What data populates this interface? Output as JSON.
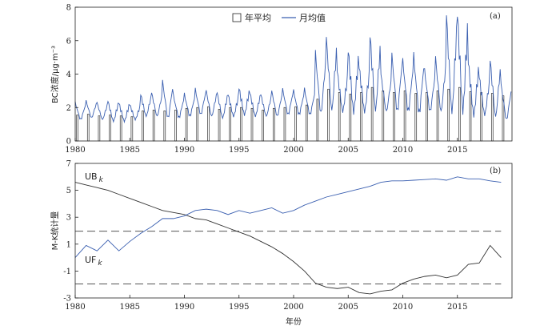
{
  "chart_data": [
    {
      "panel": "(a)",
      "type": "bar",
      "ylabel": "BC浓度/μg·m⁻³",
      "ylim": [
        0,
        8
      ],
      "yticks": [
        0,
        2,
        4,
        6,
        8
      ],
      "xlim": [
        1980,
        2020
      ],
      "xticks": [
        1980,
        1985,
        1990,
        1995,
        2000,
        2005,
        2010,
        2015
      ],
      "series": [
        {
          "name": "年平均",
          "type": "bar",
          "x": [
            1980,
            1981,
            1982,
            1983,
            1984,
            1985,
            1986,
            1987,
            1988,
            1989,
            1990,
            1991,
            1992,
            1993,
            1994,
            1995,
            1996,
            1997,
            1998,
            1999,
            2000,
            2001,
            2002,
            2003,
            2004,
            2005,
            2006,
            2007,
            2008,
            2009,
            2010,
            2011,
            2012,
            2013,
            2014,
            2015,
            2016,
            2017,
            2018,
            2019
          ],
          "values": [
            1.55,
            1.6,
            1.5,
            1.55,
            1.5,
            1.45,
            1.8,
            1.85,
            1.8,
            1.85,
            1.95,
            2.0,
            2.05,
            1.9,
            2.0,
            2.0,
            1.95,
            1.85,
            1.95,
            2.0,
            2.05,
            2.15,
            2.5,
            3.1,
            2.9,
            2.8,
            2.9,
            3.2,
            3.0,
            2.9,
            3.0,
            2.85,
            2.9,
            3.0,
            3.1,
            3.2,
            2.95,
            2.9,
            2.85,
            2.7
          ]
        },
        {
          "name": "月均值",
          "type": "line",
          "color": "#3a5fb0",
          "peaks": [
            2.3,
            2.4,
            2.3,
            2.4,
            2.3,
            2.2,
            2.8,
            2.9,
            3.6,
            2.7,
            2.8,
            3.1,
            3.0,
            2.9,
            2.8,
            3.2,
            2.9,
            2.8,
            3.0,
            3.1,
            3.0,
            3.1,
            5.3,
            6.2,
            4.2,
            5.5,
            4.5,
            6.4,
            4.0,
            5.2,
            4.8,
            5.1,
            4.2,
            5.0,
            7.6,
            7.7,
            4.8,
            3.9,
            4.9,
            3.4
          ],
          "troughs": [
            1.3,
            1.4,
            1.3,
            1.2,
            1.2,
            1.3,
            1.5,
            1.5,
            1.4,
            1.4,
            1.5,
            1.6,
            1.5,
            1.4,
            1.5,
            1.6,
            1.5,
            1.5,
            1.5,
            1.6,
            1.6,
            1.6,
            1.7,
            1.9,
            1.8,
            1.8,
            1.8,
            1.9,
            1.8,
            1.8,
            1.8,
            1.7,
            1.8,
            1.8,
            1.8,
            1.9,
            1.6,
            1.6,
            1.5,
            1.3
          ]
        }
      ]
    },
    {
      "panel": "(b)",
      "type": "line",
      "ylabel": "M-K统计量",
      "xlabel": "年份",
      "ylim": [
        -3,
        7
      ],
      "yticks": [
        -3,
        -1,
        1,
        3,
        5,
        7
      ],
      "xlim": [
        1980,
        2020
      ],
      "xticks": [
        1980,
        1985,
        1990,
        1995,
        2000,
        2005,
        2010,
        2015
      ],
      "reference_lines": [
        1.96,
        -1.96
      ],
      "series": [
        {
          "name": "UBk",
          "label_main": "UB",
          "label_sub": "k",
          "color": "#333333",
          "x": [
            1980,
            1981,
            1982,
            1983,
            1984,
            1985,
            1986,
            1987,
            1988,
            1989,
            1990,
            1991,
            1992,
            1993,
            1994,
            1995,
            1996,
            1997,
            1998,
            1999,
            2000,
            2001,
            2002,
            2003,
            2004,
            2005,
            2006,
            2007,
            2008,
            2009,
            2010,
            2011,
            2012,
            2013,
            2014,
            2015,
            2016,
            2017,
            2018,
            2019
          ],
          "values": [
            5.6,
            5.4,
            5.2,
            5.0,
            4.7,
            4.4,
            4.1,
            3.8,
            3.5,
            3.35,
            3.2,
            2.9,
            2.8,
            2.5,
            2.2,
            1.9,
            1.6,
            1.2,
            0.8,
            0.3,
            -0.3,
            -1.0,
            -1.9,
            -2.2,
            -2.3,
            -2.2,
            -2.6,
            -2.7,
            -2.5,
            -2.4,
            -1.9,
            -1.6,
            -1.4,
            -1.3,
            -1.5,
            -1.3,
            -0.5,
            -0.4,
            0.9,
            0.0
          ]
        },
        {
          "name": "UFk",
          "label_main": "UF",
          "label_sub": "k",
          "color": "#3a5fb0",
          "x": [
            1980,
            1981,
            1982,
            1983,
            1984,
            1985,
            1986,
            1987,
            1988,
            1989,
            1990,
            1991,
            1992,
            1993,
            1994,
            1995,
            1996,
            1997,
            1998,
            1999,
            2000,
            2001,
            2002,
            2003,
            2004,
            2005,
            2006,
            2007,
            2008,
            2009,
            2010,
            2011,
            2012,
            2013,
            2014,
            2015,
            2016,
            2017,
            2018,
            2019
          ],
          "values": [
            0.0,
            0.9,
            0.5,
            1.3,
            0.5,
            1.2,
            1.8,
            2.3,
            2.9,
            2.9,
            3.1,
            3.5,
            3.6,
            3.5,
            3.2,
            3.5,
            3.3,
            3.5,
            3.7,
            3.3,
            3.5,
            3.9,
            4.2,
            4.5,
            4.7,
            4.9,
            5.1,
            5.3,
            5.6,
            5.7,
            5.7,
            5.75,
            5.8,
            5.85,
            5.75,
            6.0,
            5.85,
            5.85,
            5.7,
            5.6
          ]
        }
      ]
    }
  ]
}
